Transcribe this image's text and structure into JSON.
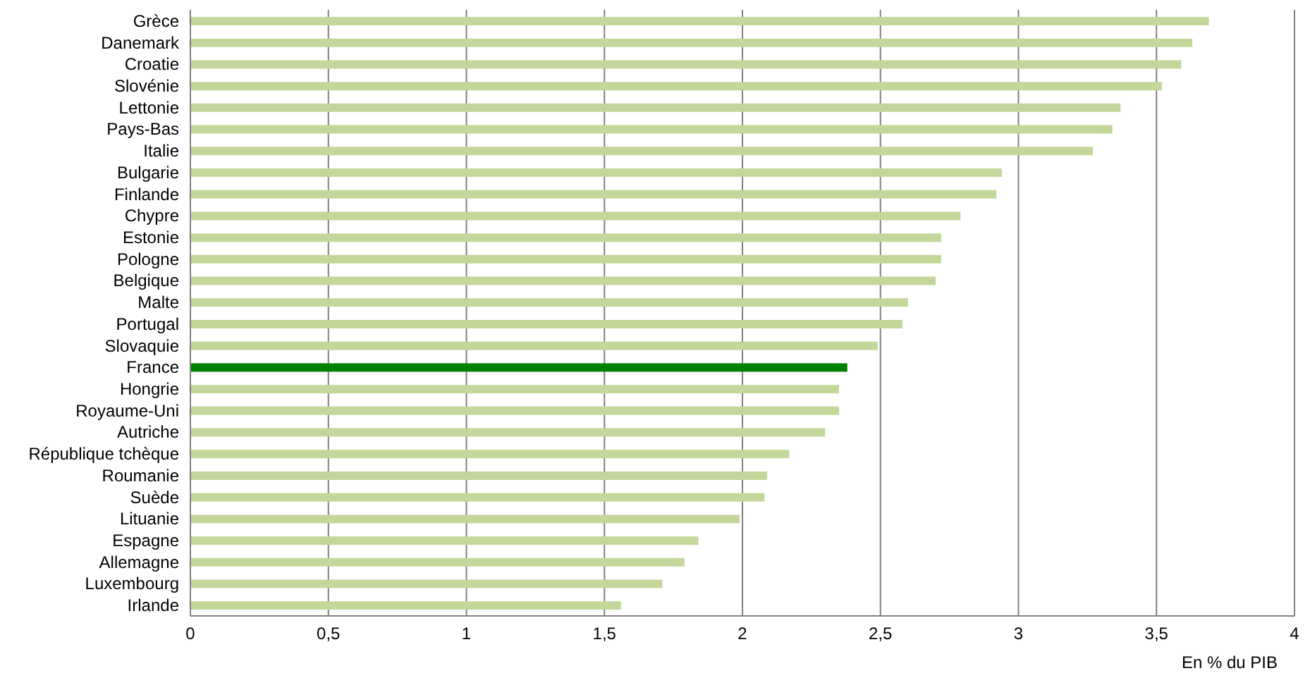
{
  "chart_data": {
    "type": "bar",
    "orientation": "horizontal",
    "categories": [
      "Grèce",
      "Danemark",
      "Croatie",
      "Slovénie",
      "Lettonie",
      "Pays-Bas",
      "Italie",
      "Bulgarie",
      "Finlande",
      "Chypre",
      "Estonie",
      "Pologne",
      "Belgique",
      "Malte",
      "Portugal",
      "Slovaquie",
      "France",
      "Hongrie",
      "Royaume-Uni",
      "Autriche",
      "République tchèque",
      "Roumanie",
      "Suède",
      "Lituanie",
      "Espagne",
      "Allemagne",
      "Luxembourg",
      "Irlande"
    ],
    "values": [
      3.69,
      3.63,
      3.59,
      3.52,
      3.37,
      3.34,
      3.27,
      2.94,
      2.92,
      2.79,
      2.72,
      2.72,
      2.7,
      2.6,
      2.58,
      2.49,
      2.38,
      2.35,
      2.35,
      2.3,
      2.17,
      2.09,
      2.08,
      1.99,
      1.84,
      1.79,
      1.71,
      1.56
    ],
    "colors": [
      "#c4d79b",
      "#c4d79b",
      "#c4d79b",
      "#c4d79b",
      "#c4d79b",
      "#c4d79b",
      "#c4d79b",
      "#c4d79b",
      "#c4d79b",
      "#c4d79b",
      "#c4d79b",
      "#c4d79b",
      "#c4d79b",
      "#c4d79b",
      "#c4d79b",
      "#c4d79b",
      "#008000",
      "#c4d79b",
      "#c4d79b",
      "#c4d79b",
      "#c4d79b",
      "#c4d79b",
      "#c4d79b",
      "#c4d79b",
      "#c4d79b",
      "#c4d79b",
      "#c4d79b",
      "#c4d79b"
    ],
    "xlim": [
      0,
      4
    ],
    "xticks": [
      0,
      {
        "value": 0.5,
        "label": "0,5"
      },
      1,
      {
        "value": 1.5,
        "label": "1,5"
      },
      2,
      {
        "value": 2.5,
        "label": "2,5"
      },
      3,
      {
        "value": 3.5,
        "label": "3,5"
      },
      4
    ],
    "xlabel": "En % du PIB",
    "grid": "x",
    "legend": false
  }
}
